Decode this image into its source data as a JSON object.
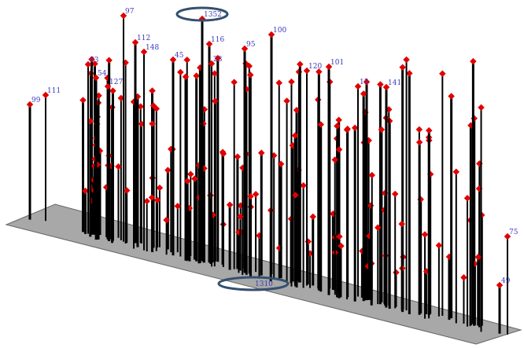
{
  "chart_data": {
    "type": "3d-stem",
    "title": "",
    "xlabel": "",
    "ylabel": "",
    "grid": false,
    "floor_color": "#a8a8a8",
    "stem_color": "#000000",
    "marker_color": "#e00000",
    "label_color": "#3a3ab8",
    "highlight_color": "#34506e",
    "labeled_points": [
      {
        "label": "97"
      },
      {
        "label": "1352"
      },
      {
        "label": "112"
      },
      {
        "label": "116"
      },
      {
        "label": "148"
      },
      {
        "label": "95"
      },
      {
        "label": "100"
      },
      {
        "label": "45"
      },
      {
        "label": "23"
      },
      {
        "label": "63"
      },
      {
        "label": "54"
      },
      {
        "label": "127"
      },
      {
        "label": "111"
      },
      {
        "label": "99"
      },
      {
        "label": "101"
      },
      {
        "label": "120"
      },
      {
        "label": "15"
      },
      {
        "label": "141"
      },
      {
        "label": "75"
      },
      {
        "label": "49"
      },
      {
        "label": "1310"
      }
    ],
    "highlighted_labels": [
      "1352",
      "1310"
    ]
  }
}
